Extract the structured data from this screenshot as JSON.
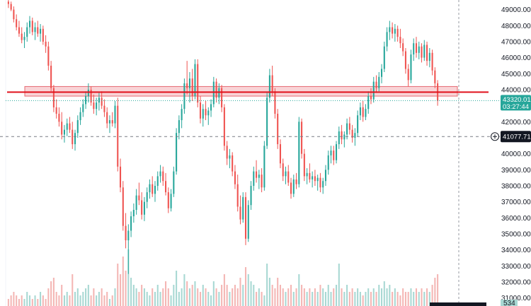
{
  "chart_data": {
    "type": "candlestick",
    "y_axis": {
      "position": "right",
      "ylim": [
        30500,
        49600
      ],
      "ticks": [
        "49000.00",
        "48000.00",
        "47000.00",
        "46000.00",
        "45000.00",
        "44000.00",
        "42000.00",
        "41000.00",
        "40000.00",
        "39000.00",
        "38000.00",
        "37000.00",
        "36000.00",
        "35000.00",
        "34000.00",
        "33000.00",
        "32000.00",
        "31000.00"
      ]
    },
    "price_tag": {
      "price": "43320.01",
      "countdown": "03:27:44",
      "value": 43320.01
    },
    "crosshair": {
      "price": "41077.71",
      "value": 41077.71
    },
    "horizontal_line": {
      "value": 43850,
      "color": "#e0101b"
    },
    "zone": {
      "from": 43600,
      "to": 44200,
      "color": "#f5b7bd"
    },
    "volume_label": "534",
    "colors": {
      "up": "#26a69a",
      "down": "#ef5350",
      "up_volume": "#a8d8d3",
      "down_volume": "#f4b6b4",
      "tag": "#131722"
    },
    "candles": [
      {
        "o": 49500,
        "h": 49800,
        "l": 49100,
        "c": 49350
      },
      {
        "o": 49350,
        "h": 49500,
        "l": 48900,
        "c": 49000
      },
      {
        "o": 49000,
        "h": 49200,
        "l": 48200,
        "c": 48400
      },
      {
        "o": 48400,
        "h": 48700,
        "l": 47700,
        "c": 47900
      },
      {
        "o": 47900,
        "h": 48300,
        "l": 47300,
        "c": 47500
      },
      {
        "o": 47500,
        "h": 47900,
        "l": 46900,
        "c": 47100
      },
      {
        "o": 47100,
        "h": 47600,
        "l": 46600,
        "c": 47300
      },
      {
        "o": 47300,
        "h": 48200,
        "l": 47000,
        "c": 47900
      },
      {
        "o": 47900,
        "h": 48600,
        "l": 47500,
        "c": 48300
      },
      {
        "o": 48300,
        "h": 48500,
        "l": 47400,
        "c": 47600
      },
      {
        "o": 47600,
        "h": 48200,
        "l": 47100,
        "c": 47900
      },
      {
        "o": 47900,
        "h": 48300,
        "l": 47300,
        "c": 47500
      },
      {
        "o": 47500,
        "h": 48100,
        "l": 47000,
        "c": 47800
      },
      {
        "o": 47800,
        "h": 48000,
        "l": 46800,
        "c": 47000
      },
      {
        "o": 47000,
        "h": 47400,
        "l": 46300,
        "c": 46700
      },
      {
        "o": 46700,
        "h": 47000,
        "l": 45200,
        "c": 45500
      },
      {
        "o": 45500,
        "h": 45800,
        "l": 43900,
        "c": 44100
      },
      {
        "o": 44100,
        "h": 44300,
        "l": 42600,
        "c": 42900
      },
      {
        "o": 42900,
        "h": 43400,
        "l": 42200,
        "c": 42500
      },
      {
        "o": 42500,
        "h": 42900,
        "l": 41700,
        "c": 42000
      },
      {
        "o": 42000,
        "h": 42600,
        "l": 40900,
        "c": 41200
      },
      {
        "o": 41200,
        "h": 41800,
        "l": 40700,
        "c": 41500
      },
      {
        "o": 41500,
        "h": 42200,
        "l": 41100,
        "c": 41900
      },
      {
        "o": 41900,
        "h": 42300,
        "l": 41300,
        "c": 41500
      },
      {
        "o": 41500,
        "h": 42000,
        "l": 40300,
        "c": 40600
      },
      {
        "o": 40600,
        "h": 41500,
        "l": 40200,
        "c": 41300
      },
      {
        "o": 41300,
        "h": 42400,
        "l": 41000,
        "c": 42100
      },
      {
        "o": 42100,
        "h": 42900,
        "l": 41800,
        "c": 42600
      },
      {
        "o": 42600,
        "h": 43400,
        "l": 42300,
        "c": 43100
      },
      {
        "o": 43100,
        "h": 43900,
        "l": 42800,
        "c": 43600
      },
      {
        "o": 43600,
        "h": 44400,
        "l": 43200,
        "c": 44000
      },
      {
        "o": 44000,
        "h": 44200,
        "l": 43000,
        "c": 43200
      },
      {
        "o": 43200,
        "h": 43700,
        "l": 42500,
        "c": 42800
      },
      {
        "o": 42800,
        "h": 43500,
        "l": 42400,
        "c": 43200
      },
      {
        "o": 43200,
        "h": 43800,
        "l": 42700,
        "c": 43500
      },
      {
        "o": 43500,
        "h": 43900,
        "l": 42800,
        "c": 43000
      },
      {
        "o": 43000,
        "h": 43400,
        "l": 42300,
        "c": 42600
      },
      {
        "o": 42600,
        "h": 42900,
        "l": 41600,
        "c": 41900
      },
      {
        "o": 41900,
        "h": 42400,
        "l": 41300,
        "c": 42100
      },
      {
        "o": 42100,
        "h": 42600,
        "l": 41700,
        "c": 41900
      },
      {
        "o": 41900,
        "h": 43300,
        "l": 41600,
        "c": 43000
      },
      {
        "o": 43000,
        "h": 43500,
        "l": 38900,
        "c": 39200
      },
      {
        "o": 39200,
        "h": 39700,
        "l": 37600,
        "c": 37900
      },
      {
        "o": 37900,
        "h": 38300,
        "l": 35200,
        "c": 35500
      },
      {
        "o": 35500,
        "h": 36300,
        "l": 34100,
        "c": 34600
      },
      {
        "o": 34600,
        "h": 35600,
        "l": 32500,
        "c": 35200
      },
      {
        "o": 35200,
        "h": 36400,
        "l": 34800,
        "c": 36100
      },
      {
        "o": 36100,
        "h": 36900,
        "l": 35700,
        "c": 36500
      },
      {
        "o": 36500,
        "h": 37800,
        "l": 36200,
        "c": 37400
      },
      {
        "o": 37400,
        "h": 38200,
        "l": 36800,
        "c": 37100
      },
      {
        "o": 37100,
        "h": 37600,
        "l": 35900,
        "c": 36200
      },
      {
        "o": 36200,
        "h": 37300,
        "l": 35800,
        "c": 37000
      },
      {
        "o": 37000,
        "h": 37900,
        "l": 36600,
        "c": 37600
      },
      {
        "o": 37600,
        "h": 38400,
        "l": 37200,
        "c": 38100
      },
      {
        "o": 38100,
        "h": 38600,
        "l": 37300,
        "c": 37500
      },
      {
        "o": 37500,
        "h": 38300,
        "l": 37000,
        "c": 38000
      },
      {
        "o": 38000,
        "h": 38900,
        "l": 37700,
        "c": 38600
      },
      {
        "o": 38600,
        "h": 39300,
        "l": 38200,
        "c": 38900
      },
      {
        "o": 38900,
        "h": 39200,
        "l": 38000,
        "c": 38300
      },
      {
        "o": 38300,
        "h": 38800,
        "l": 37400,
        "c": 37600
      },
      {
        "o": 37600,
        "h": 37900,
        "l": 36300,
        "c": 36600
      },
      {
        "o": 36600,
        "h": 37800,
        "l": 36400,
        "c": 37500
      },
      {
        "o": 37500,
        "h": 39200,
        "l": 37300,
        "c": 38900
      },
      {
        "o": 38900,
        "h": 41600,
        "l": 38700,
        "c": 41300
      },
      {
        "o": 41300,
        "h": 42400,
        "l": 40900,
        "c": 42100
      },
      {
        "o": 42100,
        "h": 43100,
        "l": 41600,
        "c": 42800
      },
      {
        "o": 42800,
        "h": 44700,
        "l": 42500,
        "c": 44400
      },
      {
        "o": 44400,
        "h": 45800,
        "l": 43700,
        "c": 44100
      },
      {
        "o": 44100,
        "h": 45100,
        "l": 43200,
        "c": 44700
      },
      {
        "o": 44700,
        "h": 45300,
        "l": 43300,
        "c": 43600
      },
      {
        "o": 43600,
        "h": 45900,
        "l": 43400,
        "c": 45600
      },
      {
        "o": 45600,
        "h": 45900,
        "l": 42900,
        "c": 43200
      },
      {
        "o": 43200,
        "h": 43600,
        "l": 41900,
        "c": 42200
      },
      {
        "o": 42200,
        "h": 43100,
        "l": 41700,
        "c": 42800
      },
      {
        "o": 42800,
        "h": 43300,
        "l": 42100,
        "c": 42400
      },
      {
        "o": 42400,
        "h": 42900,
        "l": 41800,
        "c": 42700
      },
      {
        "o": 42700,
        "h": 43400,
        "l": 42300,
        "c": 43100
      },
      {
        "o": 43100,
        "h": 44800,
        "l": 42900,
        "c": 44500
      },
      {
        "o": 44500,
        "h": 44700,
        "l": 43200,
        "c": 43500
      },
      {
        "o": 43500,
        "h": 44400,
        "l": 43100,
        "c": 44100
      },
      {
        "o": 44100,
        "h": 44300,
        "l": 42600,
        "c": 42900
      },
      {
        "o": 42900,
        "h": 43100,
        "l": 40200,
        "c": 40500
      },
      {
        "o": 40500,
        "h": 40800,
        "l": 39300,
        "c": 39700
      },
      {
        "o": 39700,
        "h": 40300,
        "l": 39100,
        "c": 39900
      },
      {
        "o": 39900,
        "h": 40100,
        "l": 38600,
        "c": 38900
      },
      {
        "o": 38900,
        "h": 39300,
        "l": 37800,
        "c": 38100
      },
      {
        "o": 38100,
        "h": 38700,
        "l": 36400,
        "c": 36700
      },
      {
        "o": 36700,
        "h": 37400,
        "l": 35600,
        "c": 35900
      },
      {
        "o": 35900,
        "h": 37600,
        "l": 35700,
        "c": 37300
      },
      {
        "o": 37300,
        "h": 37600,
        "l": 34300,
        "c": 34700
      },
      {
        "o": 34700,
        "h": 37100,
        "l": 34500,
        "c": 36800
      },
      {
        "o": 36800,
        "h": 38300,
        "l": 36500,
        "c": 38000
      },
      {
        "o": 38000,
        "h": 39200,
        "l": 37700,
        "c": 38900
      },
      {
        "o": 38900,
        "h": 39600,
        "l": 38200,
        "c": 38500
      },
      {
        "o": 38500,
        "h": 39000,
        "l": 37800,
        "c": 38700
      },
      {
        "o": 38700,
        "h": 39100,
        "l": 37600,
        "c": 37900
      },
      {
        "o": 37900,
        "h": 40800,
        "l": 37700,
        "c": 40500
      },
      {
        "o": 40500,
        "h": 43800,
        "l": 40300,
        "c": 43500
      },
      {
        "o": 43500,
        "h": 45300,
        "l": 43200,
        "c": 44900
      },
      {
        "o": 44900,
        "h": 45500,
        "l": 43600,
        "c": 43900
      },
      {
        "o": 43900,
        "h": 44100,
        "l": 42200,
        "c": 42500
      },
      {
        "o": 42500,
        "h": 42800,
        "l": 40300,
        "c": 40600
      },
      {
        "o": 40600,
        "h": 40900,
        "l": 39100,
        "c": 39400
      },
      {
        "o": 39400,
        "h": 39700,
        "l": 38300,
        "c": 38600
      },
      {
        "o": 38600,
        "h": 39200,
        "l": 38100,
        "c": 38900
      },
      {
        "o": 38900,
        "h": 39300,
        "l": 38000,
        "c": 38200
      },
      {
        "o": 38200,
        "h": 38500,
        "l": 37200,
        "c": 37500
      },
      {
        "o": 37500,
        "h": 38700,
        "l": 37300,
        "c": 38400
      },
      {
        "o": 38400,
        "h": 38800,
        "l": 37800,
        "c": 38100
      },
      {
        "o": 38100,
        "h": 42300,
        "l": 37900,
        "c": 42000
      },
      {
        "o": 42000,
        "h": 42200,
        "l": 39700,
        "c": 40000
      },
      {
        "o": 40000,
        "h": 40300,
        "l": 38300,
        "c": 38600
      },
      {
        "o": 38600,
        "h": 39100,
        "l": 38100,
        "c": 38800
      },
      {
        "o": 38800,
        "h": 39400,
        "l": 38200,
        "c": 38400
      },
      {
        "o": 38400,
        "h": 38900,
        "l": 37900,
        "c": 38600
      },
      {
        "o": 38600,
        "h": 39000,
        "l": 38000,
        "c": 38300
      },
      {
        "o": 38300,
        "h": 38700,
        "l": 37700,
        "c": 38500
      },
      {
        "o": 38500,
        "h": 38800,
        "l": 37600,
        "c": 37900
      },
      {
        "o": 37900,
        "h": 38500,
        "l": 37500,
        "c": 38300
      },
      {
        "o": 38300,
        "h": 39300,
        "l": 38000,
        "c": 39000
      },
      {
        "o": 39000,
        "h": 40200,
        "l": 38700,
        "c": 39900
      },
      {
        "o": 39900,
        "h": 40500,
        "l": 39400,
        "c": 40200
      },
      {
        "o": 40200,
        "h": 40500,
        "l": 39300,
        "c": 39600
      },
      {
        "o": 39600,
        "h": 40800,
        "l": 39400,
        "c": 40600
      },
      {
        "o": 40600,
        "h": 41700,
        "l": 40300,
        "c": 41400
      },
      {
        "o": 41400,
        "h": 41800,
        "l": 40600,
        "c": 40900
      },
      {
        "o": 40900,
        "h": 41400,
        "l": 40400,
        "c": 41200
      },
      {
        "o": 41200,
        "h": 42200,
        "l": 40900,
        "c": 41900
      },
      {
        "o": 41900,
        "h": 42300,
        "l": 41200,
        "c": 41500
      },
      {
        "o": 41500,
        "h": 41800,
        "l": 40700,
        "c": 41000
      },
      {
        "o": 41000,
        "h": 41600,
        "l": 40500,
        "c": 41300
      },
      {
        "o": 41300,
        "h": 42700,
        "l": 41100,
        "c": 42400
      },
      {
        "o": 42400,
        "h": 43200,
        "l": 42100,
        "c": 42900
      },
      {
        "o": 42900,
        "h": 43300,
        "l": 42000,
        "c": 42300
      },
      {
        "o": 42300,
        "h": 43100,
        "l": 42100,
        "c": 42800
      },
      {
        "o": 42800,
        "h": 43900,
        "l": 42500,
        "c": 43600
      },
      {
        "o": 43600,
        "h": 44100,
        "l": 43100,
        "c": 43400
      },
      {
        "o": 43400,
        "h": 44800,
        "l": 43200,
        "c": 44500
      },
      {
        "o": 44500,
        "h": 44900,
        "l": 43800,
        "c": 44100
      },
      {
        "o": 44100,
        "h": 45100,
        "l": 43900,
        "c": 44800
      },
      {
        "o": 44800,
        "h": 45600,
        "l": 44400,
        "c": 45300
      },
      {
        "o": 45300,
        "h": 47000,
        "l": 45100,
        "c": 46700
      },
      {
        "o": 46700,
        "h": 47900,
        "l": 46400,
        "c": 47600
      },
      {
        "o": 47600,
        "h": 48300,
        "l": 47100,
        "c": 47900
      },
      {
        "o": 47900,
        "h": 48200,
        "l": 47200,
        "c": 47500
      },
      {
        "o": 47500,
        "h": 48100,
        "l": 47000,
        "c": 47800
      },
      {
        "o": 47800,
        "h": 48000,
        "l": 47000,
        "c": 47300
      },
      {
        "o": 47300,
        "h": 47800,
        "l": 46600,
        "c": 46900
      },
      {
        "o": 46900,
        "h": 47200,
        "l": 46100,
        "c": 46400
      },
      {
        "o": 46400,
        "h": 46600,
        "l": 45000,
        "c": 45300
      },
      {
        "o": 45300,
        "h": 45600,
        "l": 44200,
        "c": 44600
      },
      {
        "o": 44600,
        "h": 46500,
        "l": 44400,
        "c": 46200
      },
      {
        "o": 46200,
        "h": 47200,
        "l": 45800,
        "c": 46900
      },
      {
        "o": 46900,
        "h": 47300,
        "l": 46000,
        "c": 46300
      },
      {
        "o": 46300,
        "h": 47000,
        "l": 45900,
        "c": 46700
      },
      {
        "o": 46700,
        "h": 46900,
        "l": 45700,
        "c": 46000
      },
      {
        "o": 46000,
        "h": 47100,
        "l": 45800,
        "c": 46800
      },
      {
        "o": 46800,
        "h": 47000,
        "l": 45500,
        "c": 45800
      },
      {
        "o": 45800,
        "h": 46600,
        "l": 45400,
        "c": 46300
      },
      {
        "o": 46300,
        "h": 46500,
        "l": 44900,
        "c": 45200
      },
      {
        "o": 45200,
        "h": 45400,
        "l": 44100,
        "c": 44400
      },
      {
        "o": 44400,
        "h": 44600,
        "l": 43000,
        "c": 43320
      }
    ],
    "volume": [
      2,
      3,
      4,
      3,
      2,
      3,
      2,
      4,
      3,
      2,
      3,
      2,
      4,
      3,
      2,
      5,
      7,
      8,
      4,
      3,
      6,
      3,
      4,
      3,
      9,
      4,
      5,
      3,
      4,
      5,
      6,
      3,
      5,
      3,
      4,
      5,
      3,
      4,
      2,
      3,
      5,
      12,
      9,
      14,
      10,
      16,
      8,
      6,
      5,
      4,
      6,
      5,
      4,
      3,
      5,
      4,
      6,
      4,
      5,
      7,
      5,
      3,
      6,
      10,
      4,
      5,
      9,
      7,
      5,
      6,
      7,
      5,
      4,
      6,
      5,
      4,
      3,
      7,
      5,
      4,
      6,
      9,
      6,
      4,
      5,
      6,
      5,
      8,
      6,
      11,
      9,
      7,
      6,
      4,
      5,
      4,
      3,
      12,
      8,
      6,
      5,
      8,
      6,
      5,
      4,
      5,
      6,
      4,
      5,
      9,
      6,
      5,
      4,
      5,
      4,
      5,
      4,
      6,
      5,
      4,
      6,
      4,
      5,
      6,
      12,
      5,
      4,
      6,
      4,
      5,
      4,
      5,
      4,
      3,
      4,
      5,
      4,
      5,
      4,
      6,
      5,
      7,
      5,
      6,
      4,
      5,
      4,
      3,
      5,
      4,
      4,
      5,
      4,
      5,
      4,
      5,
      4,
      5,
      4,
      6,
      8,
      9
    ]
  }
}
